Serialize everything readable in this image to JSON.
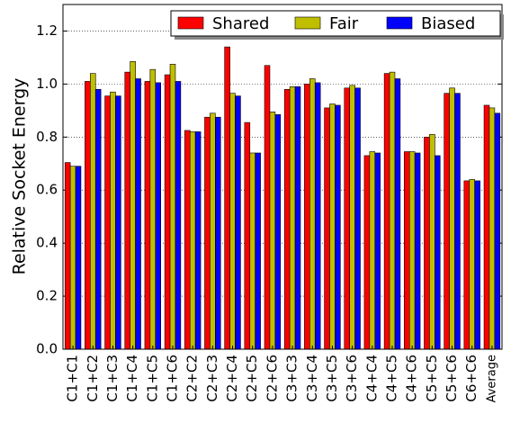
{
  "chart_data": {
    "type": "bar",
    "ylabel": "Relative Socket Energy",
    "categories": [
      "C1+C1",
      "C1+C2",
      "C1+C3",
      "C1+C4",
      "C1+C5",
      "C1+C6",
      "C2+C2",
      "C2+C3",
      "C2+C4",
      "C2+C5",
      "C2+C6",
      "C3+C3",
      "C3+C4",
      "C3+C5",
      "C3+C6",
      "C4+C4",
      "C4+C5",
      "C4+C6",
      "C5+C5",
      "C5+C6",
      "C6+C6",
      "Average"
    ],
    "series": [
      {
        "name": "Shared",
        "color": "#ff0000",
        "values": [
          0.704,
          1.01,
          0.955,
          1.045,
          1.01,
          1.035,
          0.825,
          0.875,
          1.14,
          0.855,
          1.07,
          0.98,
          1.0,
          0.91,
          0.985,
          0.73,
          1.04,
          0.745,
          0.8,
          0.965,
          0.635,
          0.92
        ]
      },
      {
        "name": "Fair",
        "color": "#bfbf00",
        "values": [
          0.69,
          1.04,
          0.97,
          1.085,
          1.055,
          1.075,
          0.82,
          0.89,
          0.965,
          0.74,
          0.895,
          0.99,
          1.02,
          0.925,
          0.995,
          0.745,
          1.045,
          0.745,
          0.81,
          0.985,
          0.64,
          0.91
        ]
      },
      {
        "name": "Biased",
        "color": "#0000ff",
        "values": [
          0.69,
          0.98,
          0.955,
          1.02,
          1.005,
          1.01,
          0.82,
          0.875,
          0.955,
          0.74,
          0.885,
          0.99,
          1.005,
          0.92,
          0.985,
          0.74,
          1.02,
          0.74,
          0.73,
          0.965,
          0.635,
          0.89
        ]
      }
    ],
    "ylim": [
      0,
      1.3
    ],
    "yticks": [
      {
        "value": 0,
        "label": "0.0"
      },
      0.2,
      0.4,
      0.6,
      0.8,
      {
        "value": 1,
        "label": "1.0"
      },
      1.2
    ],
    "grid": true,
    "legend": "upper right"
  }
}
